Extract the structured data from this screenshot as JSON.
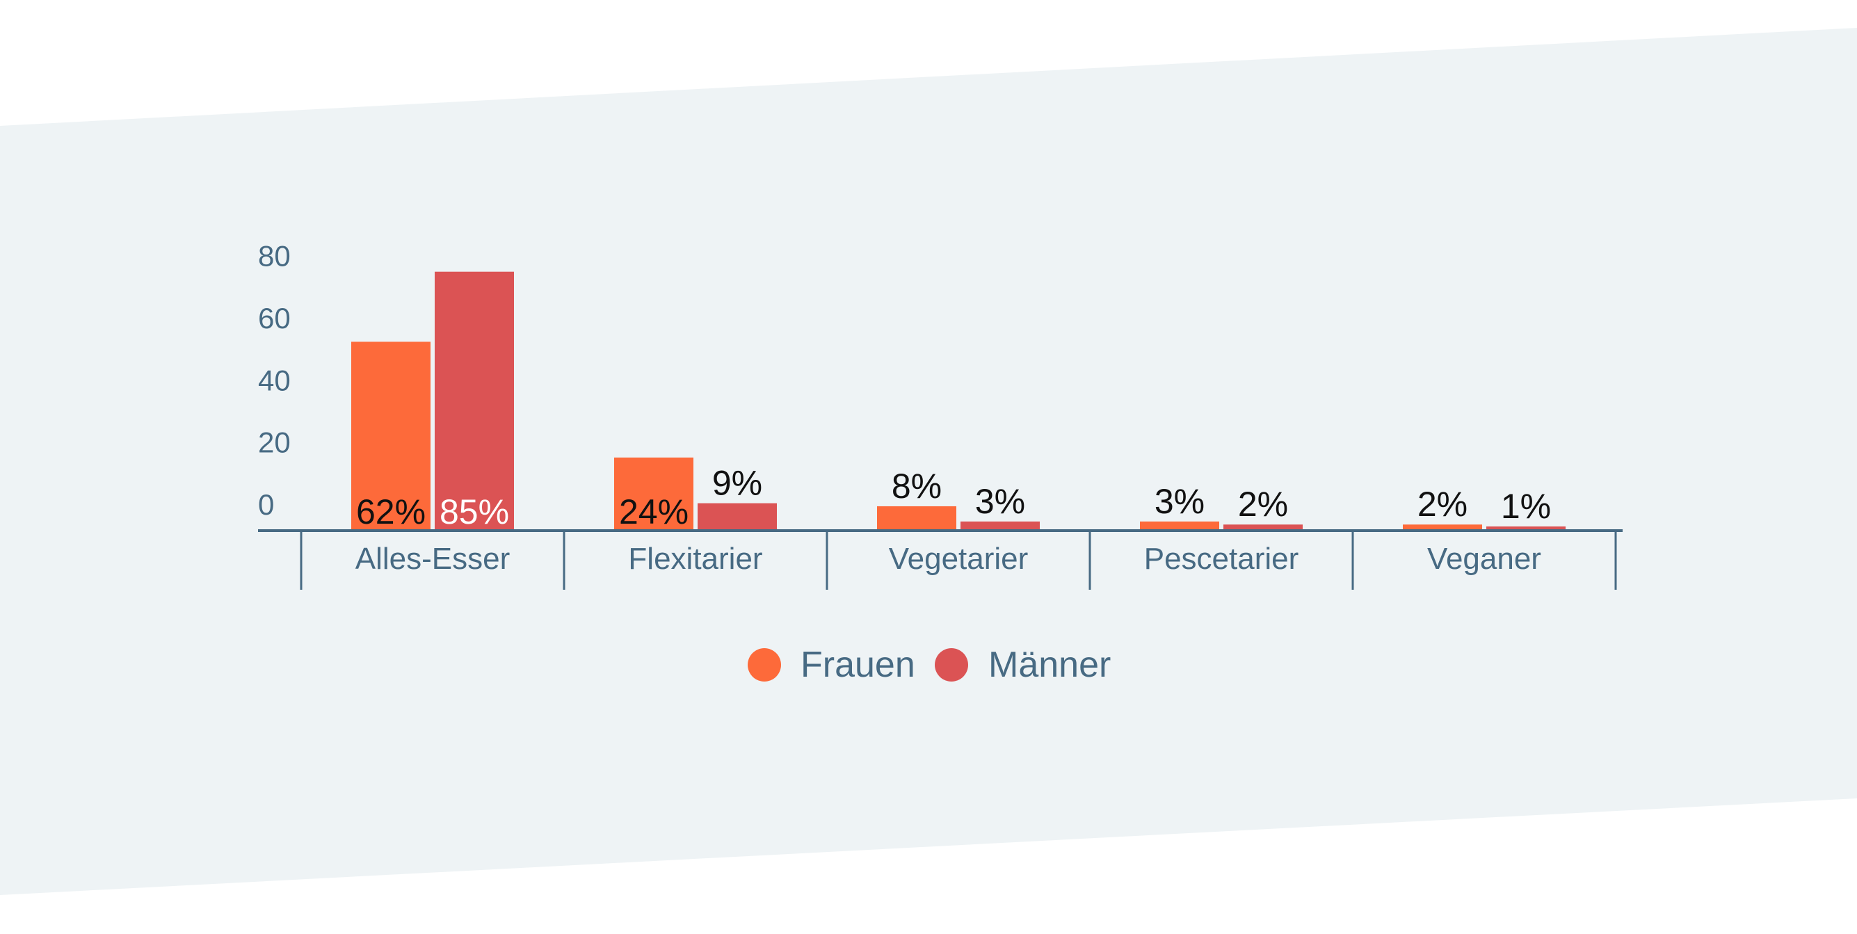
{
  "colors": {
    "background_band": "#eef3f5",
    "axis": "#476a83",
    "label_dark": "#111111",
    "label_light": "#ffffff"
  },
  "chart_data": {
    "type": "bar",
    "title": "",
    "xlabel": "",
    "ylabel": "",
    "ylim": [
      0,
      80
    ],
    "yticks": [
      0,
      20,
      40,
      60,
      80
    ],
    "categories": [
      "Alles-Esser",
      "Flexitarier",
      "Vegetarier",
      "Pescetarier",
      "Veganer"
    ],
    "series": [
      {
        "name": "Frauen",
        "color": "#fd6a3a",
        "values": [
          62,
          24,
          8,
          3,
          2
        ],
        "labels": [
          "62%",
          "24%",
          "8%",
          "3%",
          "2%"
        ]
      },
      {
        "name": "Männer",
        "color": "#db5354",
        "values": [
          85,
          9,
          3,
          2,
          1
        ],
        "labels": [
          "85%",
          "9%",
          "3%",
          "2%",
          "1%"
        ]
      }
    ],
    "grid": false,
    "legend_position": "bottom-center"
  }
}
